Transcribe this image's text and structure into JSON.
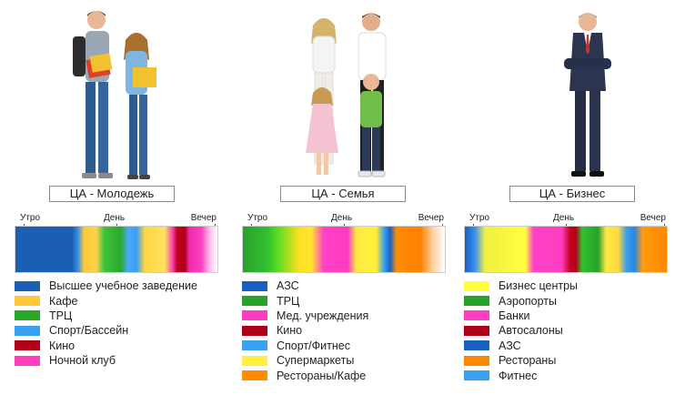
{
  "segments": [
    {
      "id": "youth",
      "label": "ЦА - Молодежь",
      "scale": {
        "morning": "Утро",
        "day": "День",
        "evening": "Вечер"
      },
      "legend": [
        {
          "label": "Высшее учебное заведение",
          "color": "#1a5fb4"
        },
        {
          "label": "Кафе",
          "color": "#ffc83a"
        },
        {
          "label": "ТРЦ",
          "color": "#2aa82a"
        },
        {
          "label": "Спорт/Бассейн",
          "color": "#3aa0f0"
        },
        {
          "label": "Кино",
          "color": "#b00018"
        },
        {
          "label": "Ночной клуб",
          "color": "#ff3fc0"
        }
      ]
    },
    {
      "id": "family",
      "label": "ЦА - Семья",
      "scale": {
        "morning": "Утро",
        "day": "День",
        "evening": "Вечер"
      },
      "legend": [
        {
          "label": "АЗС",
          "color": "#1a60c0"
        },
        {
          "label": "ТРЦ",
          "color": "#2aa12a"
        },
        {
          "label": "Мед. учреждения",
          "color": "#ff3cc0"
        },
        {
          "label": "Кино",
          "color": "#b00018"
        },
        {
          "label": "Спорт/Фитнес",
          "color": "#3aa0f0"
        },
        {
          "label": "Супермаркеты",
          "color": "#fff040"
        },
        {
          "label": "Рестораны/Кафе",
          "color": "#ff8c00"
        }
      ]
    },
    {
      "id": "business",
      "label": "ЦА - Бизнес",
      "scale": {
        "morning": "Утро",
        "day": "День",
        "evening": "Вечер"
      },
      "legend": [
        {
          "label": "Бизнес центры",
          "color": "#ffff40"
        },
        {
          "label": "Аэропорты",
          "color": "#2aa12a"
        },
        {
          "label": "Банки",
          "color": "#ff3fc0"
        },
        {
          "label": "Автосалоны",
          "color": "#b00018"
        },
        {
          "label": "АЗС",
          "color": "#1a60c0"
        },
        {
          "label": "Рестораны",
          "color": "#ff8800"
        },
        {
          "label": "Фитнес",
          "color": "#3aa0f0"
        }
      ]
    }
  ]
}
